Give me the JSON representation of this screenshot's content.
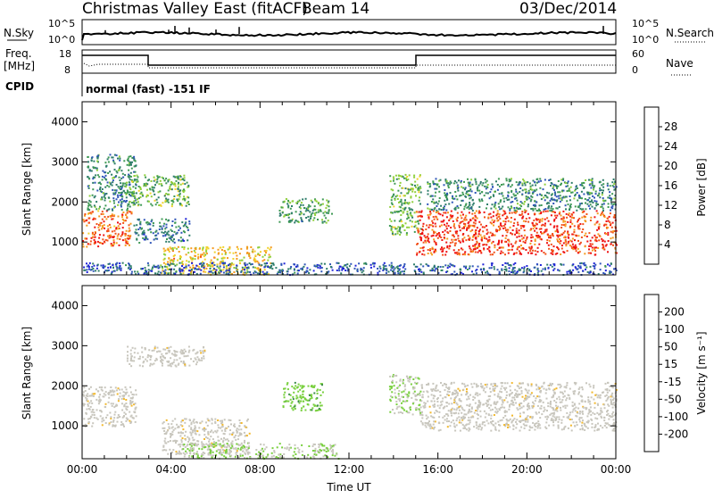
{
  "header": {
    "title": "Christmas Valley East (fitACF)",
    "beam": "Beam 14",
    "date": "03/Dec/2014"
  },
  "top_panels": {
    "nsky_label": "N.Sky",
    "nsky_ticks": [
      "10^5",
      "10^0"
    ],
    "nsearch_label": "N.Search",
    "nsearch_ticks": [
      "10^5",
      "10^0"
    ],
    "freq_label_1": "Freq.",
    "freq_label_2": "[MHz]",
    "freq_ticks": [
      "18",
      "8"
    ],
    "nave_label": "Nave",
    "nave_ticks": [
      "60",
      "0"
    ],
    "cpid_label": "CPID",
    "cpid_text": "normal (fast) -151 IF"
  },
  "colors": {
    "power_scale": [
      "#1f23d8",
      "#2f55b8",
      "#2e7d6a",
      "#3f9a55",
      "#8fcf3a",
      "#f1d22c",
      "#f59a1e",
      "#f2521a",
      "#ef1212"
    ],
    "velocity_scale": [
      "#2333c9",
      "#3f74b4",
      "#3c8a4a",
      "#78cf3d",
      "#c8c6bd",
      "#c8c6bd",
      "#f2b82c",
      "#f27a1b",
      "#f24a1a",
      "#ef1414"
    ],
    "ground_scatter": "#c8c6bd"
  },
  "chart_data": [
    {
      "type": "heatmap",
      "panel": "power",
      "ylabel": "Slant Range [km]",
      "y_ticks": [
        "1000",
        "2000",
        "3000",
        "4000"
      ],
      "ylim": [
        180,
        4500
      ],
      "x_ticks": [
        "00:00",
        "04:00",
        "08:00",
        "12:00",
        "16:00",
        "20:00",
        "00:00"
      ],
      "xlim_hours": [
        0,
        24
      ],
      "colorbar_label": "Power [dB]",
      "colorbar_ticks": [
        "4",
        "8",
        "12",
        "16",
        "20",
        "24",
        "28"
      ],
      "colorbar_range": [
        0,
        32
      ],
      "regions": [
        {
          "t": [
            0,
            2.2
          ],
          "r": [
            900,
            1800
          ],
          "value": 26
        },
        {
          "t": [
            0.2,
            2.4
          ],
          "r": [
            1800,
            3200
          ],
          "value": 10
        },
        {
          "t": [
            2.0,
            4.8
          ],
          "r": [
            1900,
            2700
          ],
          "value": 14
        },
        {
          "t": [
            2.3,
            4.8
          ],
          "r": [
            1000,
            1600
          ],
          "value": 8
        },
        {
          "t": [
            3.5,
            8.5
          ],
          "r": [
            200,
            900
          ],
          "value": 20
        },
        {
          "t": [
            8.8,
            11.2
          ],
          "r": [
            1500,
            2100
          ],
          "value": 12
        },
        {
          "t": [
            13.8,
            15.2
          ],
          "r": [
            1200,
            2700
          ],
          "value": 14
        },
        {
          "t": [
            15.0,
            24.0
          ],
          "r": [
            700,
            1800
          ],
          "value": 28
        },
        {
          "t": [
            15.5,
            24.0
          ],
          "r": [
            1800,
            2600
          ],
          "value": 10
        },
        {
          "t": [
            0,
            24.0
          ],
          "r": [
            200,
            500
          ],
          "value": 6
        }
      ]
    },
    {
      "type": "heatmap",
      "panel": "velocity",
      "ylabel": "Slant Range [km]",
      "y_ticks": [
        "1000",
        "2000",
        "3000",
        "4000"
      ],
      "ylim": [
        180,
        4500
      ],
      "x_ticks": [
        "00:00",
        "04:00",
        "08:00",
        "12:00",
        "16:00",
        "20:00",
        "00:00"
      ],
      "xlim_hours": [
        0,
        24
      ],
      "xlabel": "Time UT",
      "colorbar_label": "Velocity [m s⁻¹]",
      "colorbar_ticks": [
        "200",
        "100",
        "50",
        "15",
        "-15",
        "-50",
        "-100",
        "-200"
      ],
      "regions": [
        {
          "t": [
            0,
            2.4
          ],
          "r": [
            1000,
            2000
          ],
          "value": 0
        },
        {
          "t": [
            2.0,
            5.5
          ],
          "r": [
            2500,
            3000
          ],
          "value": 0
        },
        {
          "t": [
            3.5,
            7.5
          ],
          "r": [
            300,
            1200
          ],
          "value": 0
        },
        {
          "t": [
            4.5,
            11.5
          ],
          "r": [
            200,
            600
          ],
          "value": 30
        },
        {
          "t": [
            9.0,
            10.8
          ],
          "r": [
            1400,
            2100
          ],
          "value": 40
        },
        {
          "t": [
            13.8,
            15.2
          ],
          "r": [
            1300,
            2300
          ],
          "value": 30
        },
        {
          "t": [
            15.2,
            24.0
          ],
          "r": [
            900,
            2100
          ],
          "value": 0
        }
      ]
    }
  ]
}
